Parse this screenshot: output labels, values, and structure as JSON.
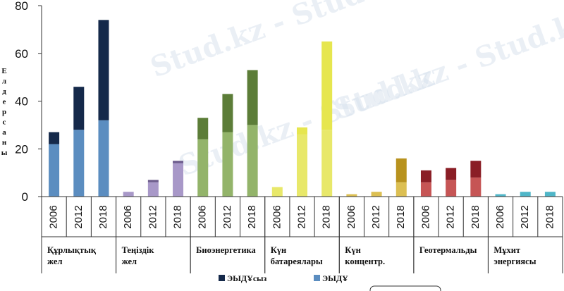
{
  "chart_data": {
    "type": "bar",
    "stacked": true,
    "groups": [
      {
        "lines": [
          "Құрлықтық",
          "жел"
        ],
        "categories": [
          "2006",
          "2012",
          "2018"
        ],
        "base": [
          22,
          28,
          32
        ],
        "top": [
          5,
          18,
          42
        ],
        "base_color": "#5b8dc0",
        "top_color": "#15294a"
      },
      {
        "lines": [
          "Теңіздік",
          "жел"
        ],
        "categories": [
          "2006",
          "2012",
          "2018"
        ],
        "base": [
          2,
          6,
          14
        ],
        "top": [
          0,
          1,
          1
        ],
        "base_color": "#a898c8",
        "top_color": "#6e5e8e"
      },
      {
        "lines": [
          "Биоэнергетика"
        ],
        "categories": [
          "2006",
          "2012",
          "2018"
        ],
        "base": [
          24,
          27,
          30
        ],
        "top": [
          9,
          16,
          23
        ],
        "base_color": "#93b46a",
        "top_color": "#5c7d38"
      },
      {
        "lines": [
          "Күн",
          "батареялары"
        ],
        "categories": [
          "2006",
          "2012",
          "2018"
        ],
        "base": [
          4,
          26,
          28
        ],
        "top": [
          0,
          3,
          37
        ],
        "base_color": "#e8e86a",
        "top_color": "#e6e64f"
      },
      {
        "lines": [
          "Күн",
          "концентр."
        ],
        "categories": [
          "2006",
          "2012",
          "2018"
        ],
        "base": [
          1,
          2,
          6
        ],
        "top": [
          0,
          0,
          10
        ],
        "base_color": "#dcbf52",
        "top_color": "#b8921e"
      },
      {
        "lines": [
          "Геотермальды"
        ],
        "categories": [
          "2006",
          "2012",
          "2018"
        ],
        "base": [
          6,
          7,
          8
        ],
        "top": [
          5,
          5,
          7
        ],
        "base_color": "#c65555",
        "top_color": "#8a1e26"
      },
      {
        "lines": [
          "Мұхит",
          "энергиясы"
        ],
        "categories": [
          "2006",
          "2012",
          "2018"
        ],
        "base": [
          1,
          2,
          2
        ],
        "top": [
          0,
          0,
          0
        ],
        "base_color": "#4fb6c8",
        "top_color": "#2b8a9e"
      }
    ],
    "ylabel": "Е л д е р с а н ы",
    "yticks": [
      0,
      20,
      40,
      60,
      80
    ],
    "ylim": [
      0,
      80
    ],
    "legend": [
      {
        "label": "ЭЫДҰсыз",
        "color": "#15294a"
      },
      {
        "label": "ЭЫДҰ",
        "color": "#5b8dc0"
      }
    ],
    "legend_position": "bottom",
    "grid": false
  },
  "watermark": {
    "text": "Stud.kz - Stud.kz"
  }
}
